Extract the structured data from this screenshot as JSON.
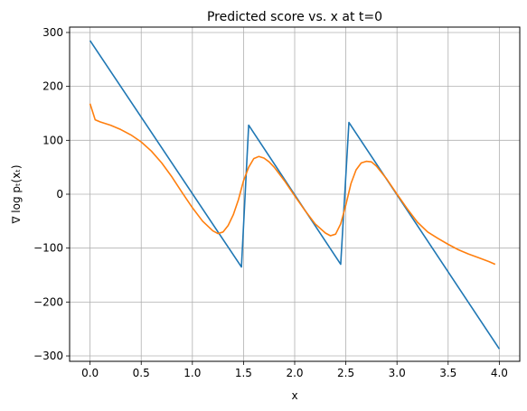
{
  "chart_data": {
    "type": "line",
    "title": "Predicted score vs. x at t=0",
    "xlabel": "x",
    "ylabel": "∇ log pₜ(xₜ)",
    "xlim": [
      -0.2,
      4.2
    ],
    "ylim": [
      -310,
      310
    ],
    "x_ticks": [
      0.0,
      0.5,
      1.0,
      1.5,
      2.0,
      2.5,
      3.0,
      3.5,
      4.0
    ],
    "x_tick_labels": [
      "0.0",
      "0.5",
      "1.0",
      "1.5",
      "2.0",
      "2.5",
      "3.0",
      "3.5",
      "4.0"
    ],
    "y_ticks": [
      -300,
      -200,
      -100,
      0,
      100,
      200,
      300
    ],
    "y_tick_labels": [
      "−300",
      "−200",
      "−100",
      "0",
      "100",
      "200",
      "300"
    ],
    "grid": true,
    "series": [
      {
        "color": "#1f77b4",
        "points": [
          [
            0.0,
            285
          ],
          [
            1.48,
            -135
          ],
          [
            1.55,
            128
          ],
          [
            2.45,
            -130
          ],
          [
            2.53,
            133
          ],
          [
            4.0,
            -287
          ]
        ]
      },
      {
        "color": "#ff7f0e",
        "points": [
          [
            0.0,
            168
          ],
          [
            0.05,
            138
          ],
          [
            0.1,
            134
          ],
          [
            0.2,
            128
          ],
          [
            0.3,
            120
          ],
          [
            0.4,
            110
          ],
          [
            0.5,
            97
          ],
          [
            0.6,
            80
          ],
          [
            0.7,
            58
          ],
          [
            0.8,
            32
          ],
          [
            0.9,
            3
          ],
          [
            1.0,
            -25
          ],
          [
            1.1,
            -50
          ],
          [
            1.2,
            -68
          ],
          [
            1.25,
            -73
          ],
          [
            1.3,
            -70
          ],
          [
            1.35,
            -58
          ],
          [
            1.4,
            -38
          ],
          [
            1.45,
            -10
          ],
          [
            1.5,
            25
          ],
          [
            1.55,
            50
          ],
          [
            1.6,
            66
          ],
          [
            1.65,
            70
          ],
          [
            1.7,
            67
          ],
          [
            1.75,
            60
          ],
          [
            1.8,
            50
          ],
          [
            1.9,
            25
          ],
          [
            2.0,
            -3
          ],
          [
            2.1,
            -30
          ],
          [
            2.2,
            -55
          ],
          [
            2.3,
            -72
          ],
          [
            2.35,
            -77
          ],
          [
            2.4,
            -74
          ],
          [
            2.45,
            -55
          ],
          [
            2.5,
            -20
          ],
          [
            2.55,
            20
          ],
          [
            2.6,
            45
          ],
          [
            2.65,
            58
          ],
          [
            2.7,
            61
          ],
          [
            2.75,
            60
          ],
          [
            2.8,
            52
          ],
          [
            2.9,
            28
          ],
          [
            3.0,
            0
          ],
          [
            3.1,
            -27
          ],
          [
            3.2,
            -52
          ],
          [
            3.3,
            -70
          ],
          [
            3.4,
            -82
          ],
          [
            3.5,
            -93
          ],
          [
            3.6,
            -103
          ],
          [
            3.7,
            -111
          ],
          [
            3.8,
            -118
          ],
          [
            3.9,
            -125
          ],
          [
            3.96,
            -130
          ]
        ]
      }
    ]
  }
}
